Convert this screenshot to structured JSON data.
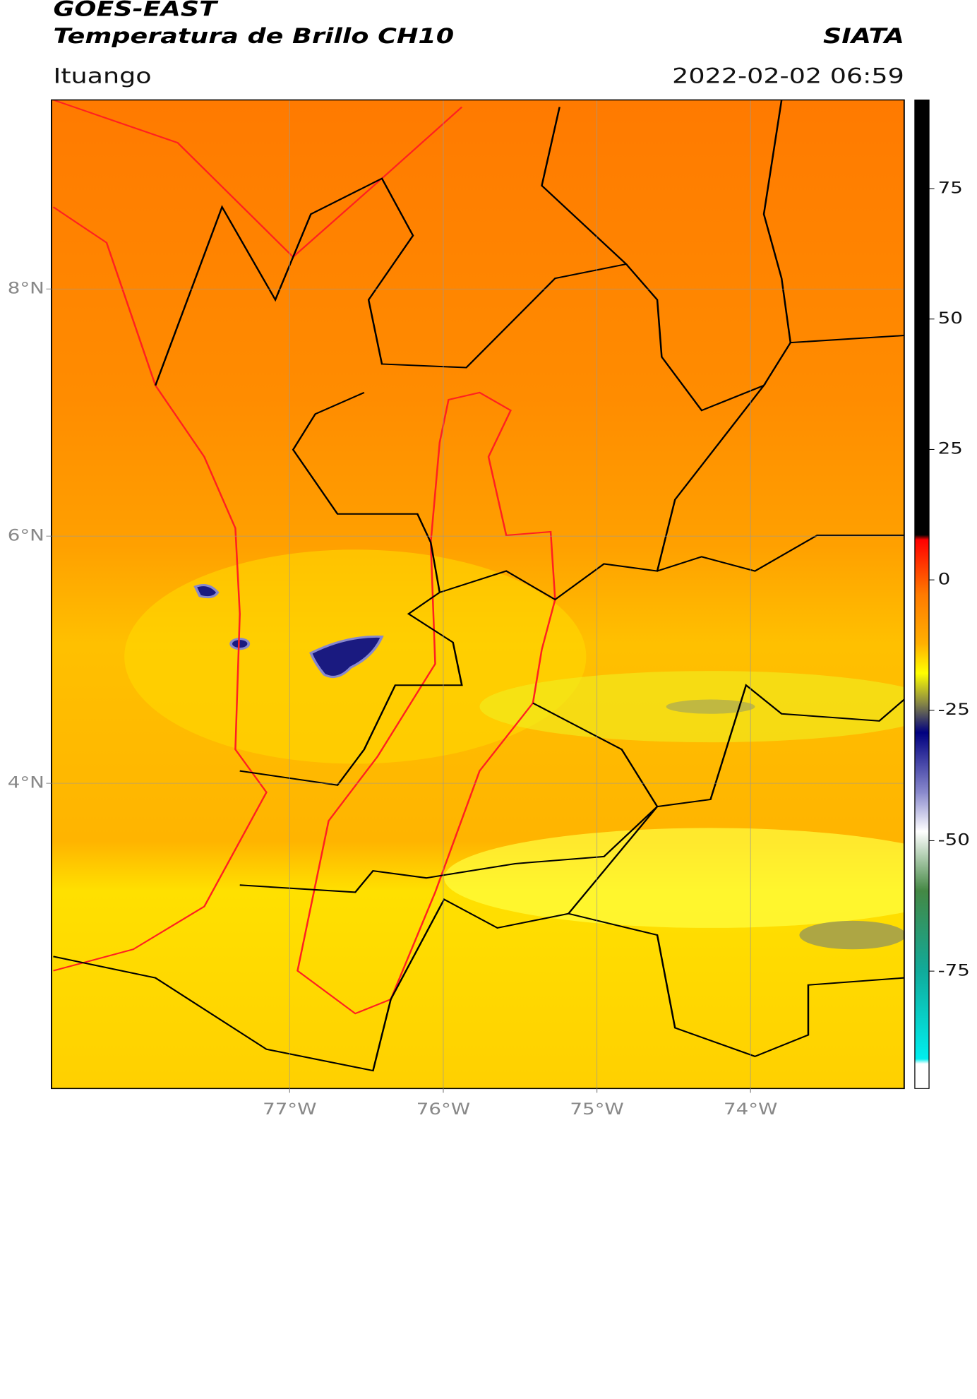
{
  "header": {
    "title": "GOES-EAST",
    "subtitle": "Temperatura de Brillo CH10",
    "brand": "SIATA",
    "location": "Ituango",
    "datetime": "2022-02-02 06:59"
  },
  "map": {
    "xlim": [
      -78.55,
      -73.0
    ],
    "ylim": [
      1.53,
      9.53
    ],
    "xticks": [
      {
        "value": -77,
        "label": "77°W"
      },
      {
        "value": -76,
        "label": "76°W"
      },
      {
        "value": -75,
        "label": "75°W"
      },
      {
        "value": -74,
        "label": "74°W"
      }
    ],
    "yticks": [
      {
        "value": 8,
        "label": "8°N"
      },
      {
        "value": 6,
        "label": "6°N"
      },
      {
        "value": 4,
        "label": "4°N"
      }
    ],
    "grid": true
  },
  "colorbar": {
    "clim": [
      -97.5,
      92
    ],
    "ticks": [
      75,
      50,
      25,
      0,
      -25,
      -50,
      -75
    ]
  }
}
